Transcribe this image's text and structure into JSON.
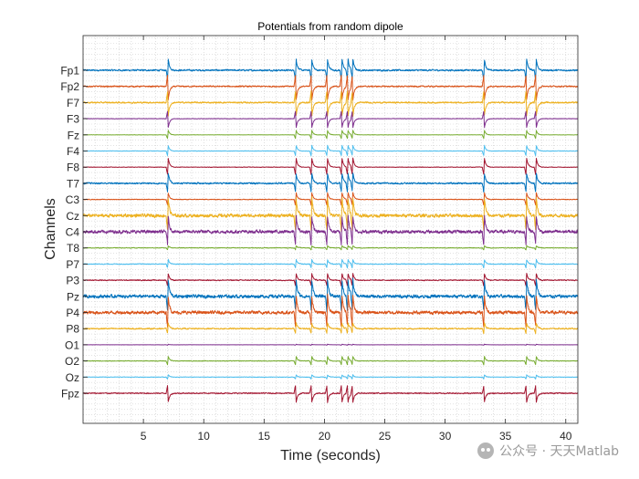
{
  "chart_data": {
    "type": "line",
    "title": "Potentials from random dipole",
    "xlabel": "Time (seconds)",
    "ylabel": "Channels",
    "xlim": [
      0,
      41
    ],
    "xticks": [
      5,
      10,
      15,
      20,
      25,
      30,
      35,
      40
    ],
    "grid": "dotted-minor",
    "channels": [
      "Fp1",
      "Fp2",
      "F7",
      "F3",
      "Fz",
      "F4",
      "F8",
      "T7",
      "C3",
      "Cz",
      "C4",
      "T8",
      "P7",
      "P3",
      "Pz",
      "P4",
      "P8",
      "O1",
      "O2",
      "Oz",
      "Fpz"
    ],
    "channel_colors": [
      "#0072BD",
      "#D95319",
      "#EDB120",
      "#7E2F8E",
      "#77AC30",
      "#4DBEEE",
      "#A2142F",
      "#0072BD",
      "#D95319",
      "#EDB120",
      "#7E2F8E",
      "#77AC30",
      "#4DBEEE",
      "#A2142F",
      "#0072BD",
      "#D95319",
      "#EDB120",
      "#7E2F8E",
      "#77AC30",
      "#4DBEEE",
      "#A2142F"
    ],
    "noise_level": [
      0.5,
      0.4,
      0.45,
      0.15,
      0.1,
      0.15,
      0.15,
      0.5,
      0.2,
      1.0,
      1.0,
      0.2,
      0.25,
      0.3,
      1.0,
      1.0,
      0.4,
      0.05,
      0.2,
      0.15,
      0.35
    ],
    "spike_gain": [
      1.0,
      -1.2,
      -1.2,
      -0.8,
      0.4,
      0.5,
      0.8,
      0.9,
      0.6,
      1.6,
      1.4,
      0.2,
      0.4,
      0.6,
      1.5,
      1.5,
      0.5,
      0.05,
      0.4,
      0.2,
      -0.8
    ],
    "spike_times": [
      7.0,
      17.6,
      18.9,
      20.2,
      21.4,
      21.9,
      22.3,
      33.2,
      36.7,
      37.5
    ]
  },
  "watermark": {
    "text": "公众号 · 天天Matlab",
    "icon": "wechat-icon"
  }
}
